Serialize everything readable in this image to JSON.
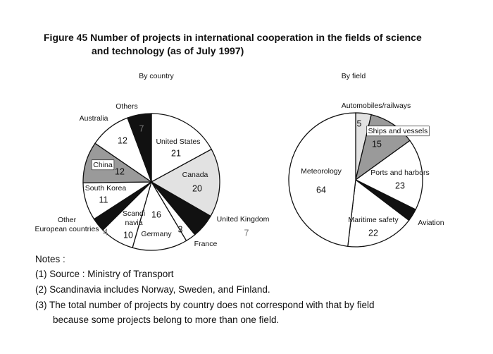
{
  "title": "Figure 45 Number of projects in international cooperation in the fields of science\nand technology (as of July 1997)",
  "chart_data": [
    {
      "type": "pie",
      "subtitle": "By country",
      "categories": [
        "United States",
        "Canada",
        "United Kingdom",
        "France",
        "Germany",
        "Scandi\nnavia",
        "Other\nEuropean countries",
        "South Korea",
        "China",
        "Australia",
        "Others"
      ],
      "values": [
        21,
        20,
        7,
        3,
        16,
        10,
        4,
        11,
        12,
        12,
        7
      ],
      "colors": [
        "#ffffff",
        "#e2e2e2",
        "#111111",
        "#ffffff",
        "#ffffff",
        "#ffffff",
        "#111111",
        "#ffffff",
        "#9a9a9a",
        "#ffffff",
        "#111111"
      ]
    },
    {
      "type": "pie",
      "subtitle": "By field",
      "categories": [
        "Automobiles/railways",
        "Ships and vessels",
        "Ports and harbors",
        "Aviation",
        "Maritime safety",
        "Meteorology"
      ],
      "values": [
        5,
        15,
        23,
        4,
        22,
        64
      ],
      "value_labels": [
        "5",
        "15",
        "23",
        null,
        "22",
        "64"
      ],
      "colors": [
        "#e2e2e2",
        "#9a9a9a",
        "#ffffff",
        "#111111",
        "#ffffff",
        "#ffffff"
      ]
    }
  ],
  "notes": {
    "heading": "Notes :",
    "items": [
      "(1) Source : Ministry of Transport",
      "(2) Scandinavia includes Norway, Sweden, and Finland.",
      "(3) The total number of projects by country does not correspond with that by field\nbecause some projects belong to more than one field."
    ]
  }
}
